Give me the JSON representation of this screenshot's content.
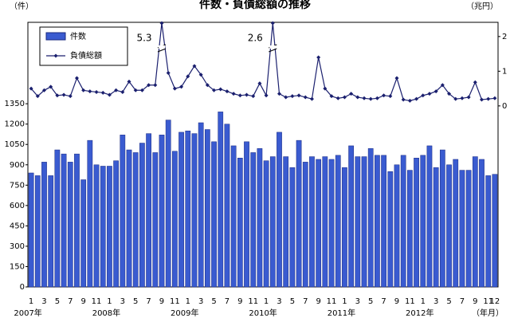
{
  "chart_data": {
    "type": "bar",
    "title": "件数・負債総額の推移",
    "y_label": "（件）",
    "y2_label": "（兆円）",
    "x_label": "（年月）",
    "categories": [
      "1",
      null,
      "3",
      null,
      "5",
      null,
      "7",
      null,
      "9",
      null,
      "11",
      null,
      "1",
      null,
      "3",
      null,
      "5",
      null,
      "7",
      null,
      "9",
      null,
      "11",
      null,
      "1",
      null,
      "3",
      null,
      "5",
      null,
      "7",
      null,
      "9",
      null,
      "11",
      null,
      "1",
      null,
      "3",
      null,
      "5",
      null,
      "7",
      null,
      "9",
      null,
      "11",
      null,
      "1",
      null,
      "3",
      null,
      "5",
      null,
      "7",
      null,
      "9",
      null,
      "11",
      null,
      "1",
      null,
      "3",
      null,
      "5",
      null,
      "7",
      null,
      "9",
      null,
      "11",
      "12"
    ],
    "year_labels": [
      "2007年",
      "2008年",
      "2009年",
      "2010年",
      "2011年",
      "2012年"
    ],
    "series": [
      {
        "name": "件数",
        "type": "bar",
        "color": "#3a5bd0",
        "values": [
          840,
          820,
          920,
          820,
          1010,
          980,
          920,
          980,
          790,
          1080,
          900,
          890,
          890,
          930,
          1120,
          1010,
          990,
          1060,
          1130,
          990,
          1120,
          1230,
          1000,
          1140,
          1150,
          1130,
          1210,
          1160,
          1070,
          1290,
          1200,
          1040,
          950,
          1070,
          990,
          1020,
          930,
          960,
          1140,
          960,
          880,
          1080,
          920,
          960,
          940,
          960,
          940,
          970,
          880,
          1040,
          960,
          960,
          1020,
          970,
          970,
          850,
          900,
          970,
          860,
          950,
          970,
          1040,
          880,
          1010,
          900,
          940,
          860,
          860,
          960,
          940,
          820,
          830
        ]
      },
      {
        "name": "負債総額",
        "type": "line",
        "axis": "y2",
        "color": "#1a1f6e",
        "values": [
          0.5,
          0.28,
          0.45,
          0.55,
          0.3,
          0.32,
          0.28,
          0.8,
          0.45,
          0.42,
          0.4,
          0.38,
          0.32,
          0.45,
          0.4,
          0.7,
          0.45,
          0.45,
          0.6,
          0.6,
          5.3,
          0.95,
          0.5,
          0.55,
          0.85,
          1.15,
          0.9,
          0.6,
          0.45,
          0.48,
          0.42,
          0.35,
          0.3,
          0.32,
          0.28,
          0.65,
          0.3,
          2.6,
          0.35,
          0.25,
          0.28,
          0.3,
          0.25,
          0.2,
          1.4,
          0.5,
          0.28,
          0.22,
          0.25,
          0.35,
          0.25,
          0.22,
          0.2,
          0.22,
          0.3,
          0.28,
          0.8,
          0.18,
          0.15,
          0.2,
          0.3,
          0.35,
          0.42,
          0.6,
          0.35,
          0.2,
          0.22,
          0.25,
          0.68,
          0.18,
          0.2,
          0.22
        ]
      }
    ],
    "ylim": [
      0,
      1950
    ],
    "yticks": [
      0,
      150,
      300,
      450,
      600,
      750,
      900,
      1050,
      1200,
      1350
    ],
    "y2lim": [
      -5.22,
      2.41
    ],
    "y2ticks": [
      0,
      1,
      2
    ],
    "y2_break": true,
    "legend": "top-left"
  }
}
